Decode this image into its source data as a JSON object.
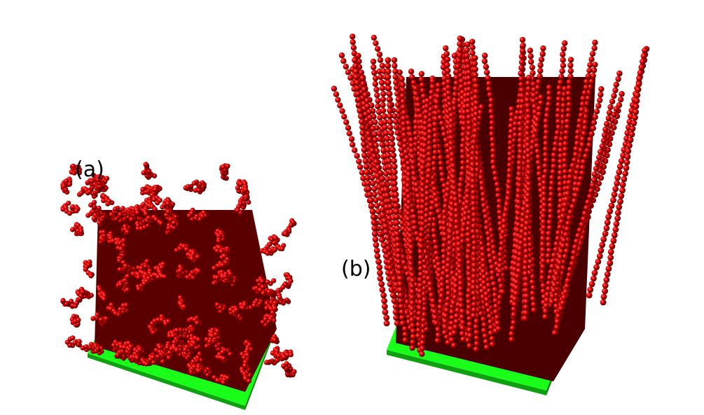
{
  "panels": [
    {
      "label": "(a)",
      "description_color_substrate": "#19ff19",
      "chain_color": "#d40000"
    },
    {
      "label": "(b)",
      "description_color_substrate": "#19ff19",
      "chain_color": "#d40000"
    }
  ],
  "colors": {
    "substrate": "#19ff19",
    "substrate_edge": "#0c9a0c",
    "bead": "#e00000",
    "bead_dark": "#3a0000"
  }
}
